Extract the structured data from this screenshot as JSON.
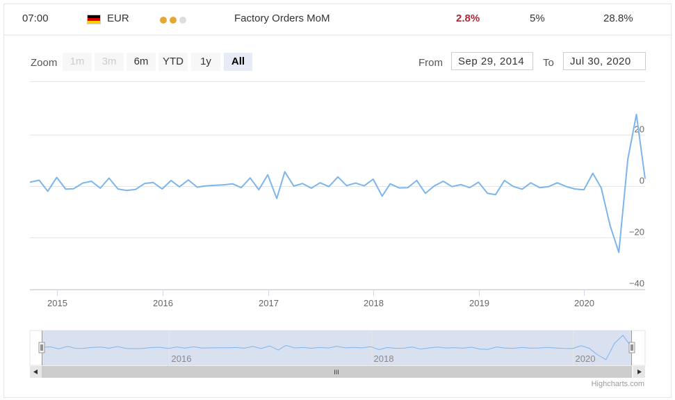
{
  "event": {
    "time": "07:00",
    "currency": "EUR",
    "flag_colors": [
      "#000000",
      "#dd0000",
      "#ffce00"
    ],
    "importance_colors": [
      "#e6a835",
      "#e6a835",
      "#dddddd"
    ],
    "name": "Factory Orders MoM",
    "actual": "2.8%",
    "forecast": "5%",
    "previous": "28.8%",
    "actual_color": "#b0283a"
  },
  "range_selector": {
    "zoom_label": "Zoom",
    "buttons": [
      {
        "label": "1m",
        "state": "disabled"
      },
      {
        "label": "3m",
        "state": "disabled"
      },
      {
        "label": "6m",
        "state": "normal"
      },
      {
        "label": "YTD",
        "state": "normal"
      },
      {
        "label": "1y",
        "state": "normal"
      },
      {
        "label": "All",
        "state": "active"
      }
    ],
    "from_label": "From",
    "from_value": "Sep 29, 2014",
    "to_label": "To",
    "to_value": "Jul 30, 2020"
  },
  "credit": "Highcharts.com",
  "scrollbar_grip": "III",
  "chart_data": {
    "type": "line",
    "line_color": "#7cb5ec",
    "grid": true,
    "xlim": [
      "2014-09-29",
      "2020-07-30"
    ],
    "ylim": [
      -40,
      40
    ],
    "y_ticks": [
      20,
      0,
      -20,
      -40
    ],
    "y_tick_labels": [
      "20",
      "0",
      "−20",
      "−40"
    ],
    "x_ticks": [
      "2015-01-01",
      "2016-01-01",
      "2017-01-01",
      "2018-01-01",
      "2019-01-01",
      "2020-01-01"
    ],
    "x_tick_labels": [
      "2015",
      "2016",
      "2017",
      "2018",
      "2019",
      "2020"
    ],
    "navigator_labels": [
      {
        "date": "2016-01-01",
        "label": "2016"
      },
      {
        "date": "2018-01-01",
        "label": "2018"
      },
      {
        "date": "2020-01-01",
        "label": "2020"
      }
    ],
    "series": [
      {
        "x": [
          "2014-09-29",
          "2014-10-31",
          "2014-11-30",
          "2014-12-31",
          "2015-01-31",
          "2015-02-28",
          "2015-03-31",
          "2015-04-30",
          "2015-05-31",
          "2015-06-30",
          "2015-07-31",
          "2015-08-31",
          "2015-09-30",
          "2015-10-31",
          "2015-11-30",
          "2015-12-31",
          "2016-01-31",
          "2016-02-29",
          "2016-03-31",
          "2016-04-30",
          "2016-05-31",
          "2016-06-30",
          "2016-07-31",
          "2016-08-31",
          "2016-09-30",
          "2016-10-31",
          "2016-11-30",
          "2016-12-31",
          "2017-01-31",
          "2017-02-28",
          "2017-03-31",
          "2017-04-30",
          "2017-05-31",
          "2017-06-30",
          "2017-07-31",
          "2017-08-31",
          "2017-09-30",
          "2017-10-31",
          "2017-11-30",
          "2017-12-31",
          "2018-01-31",
          "2018-02-28",
          "2018-03-31",
          "2018-04-30",
          "2018-05-31",
          "2018-06-30",
          "2018-07-31",
          "2018-08-31",
          "2018-09-30",
          "2018-10-31",
          "2018-11-30",
          "2018-12-31",
          "2019-01-31",
          "2019-02-28",
          "2019-03-31",
          "2019-04-30",
          "2019-05-31",
          "2019-06-30",
          "2019-07-31",
          "2019-08-31",
          "2019-09-30",
          "2019-10-31",
          "2019-11-30",
          "2019-12-31",
          "2020-01-31",
          "2020-02-29",
          "2020-03-31",
          "2020-04-30",
          "2020-05-31",
          "2020-06-30",
          "2020-07-30"
        ],
        "values": [
          1.5,
          2.3,
          -2.0,
          3.4,
          -1.2,
          -1.0,
          1.2,
          1.9,
          -0.8,
          3.1,
          -1.1,
          -1.7,
          -1.3,
          1.0,
          1.4,
          -1.1,
          2.2,
          -0.3,
          2.4,
          -0.4,
          0.1,
          0.3,
          0.5,
          0.9,
          -0.6,
          3.2,
          -1.4,
          4.4,
          -4.8,
          5.6,
          0.0,
          1.0,
          -0.8,
          1.3,
          -0.2,
          3.6,
          0.2,
          1.2,
          0.1,
          2.7,
          -3.9,
          0.9,
          -0.7,
          -0.6,
          2.2,
          -2.8,
          0.1,
          1.9,
          -0.2,
          0.6,
          -0.6,
          1.5,
          -2.8,
          -3.3,
          2.2,
          -0.1,
          -1.2,
          1.3,
          -0.6,
          -0.2,
          1.3,
          -0.2,
          -1.1,
          -1.4,
          5.0,
          -0.7,
          -15.4,
          -25.8,
          10.4,
          27.9,
          2.8
        ]
      }
    ]
  }
}
